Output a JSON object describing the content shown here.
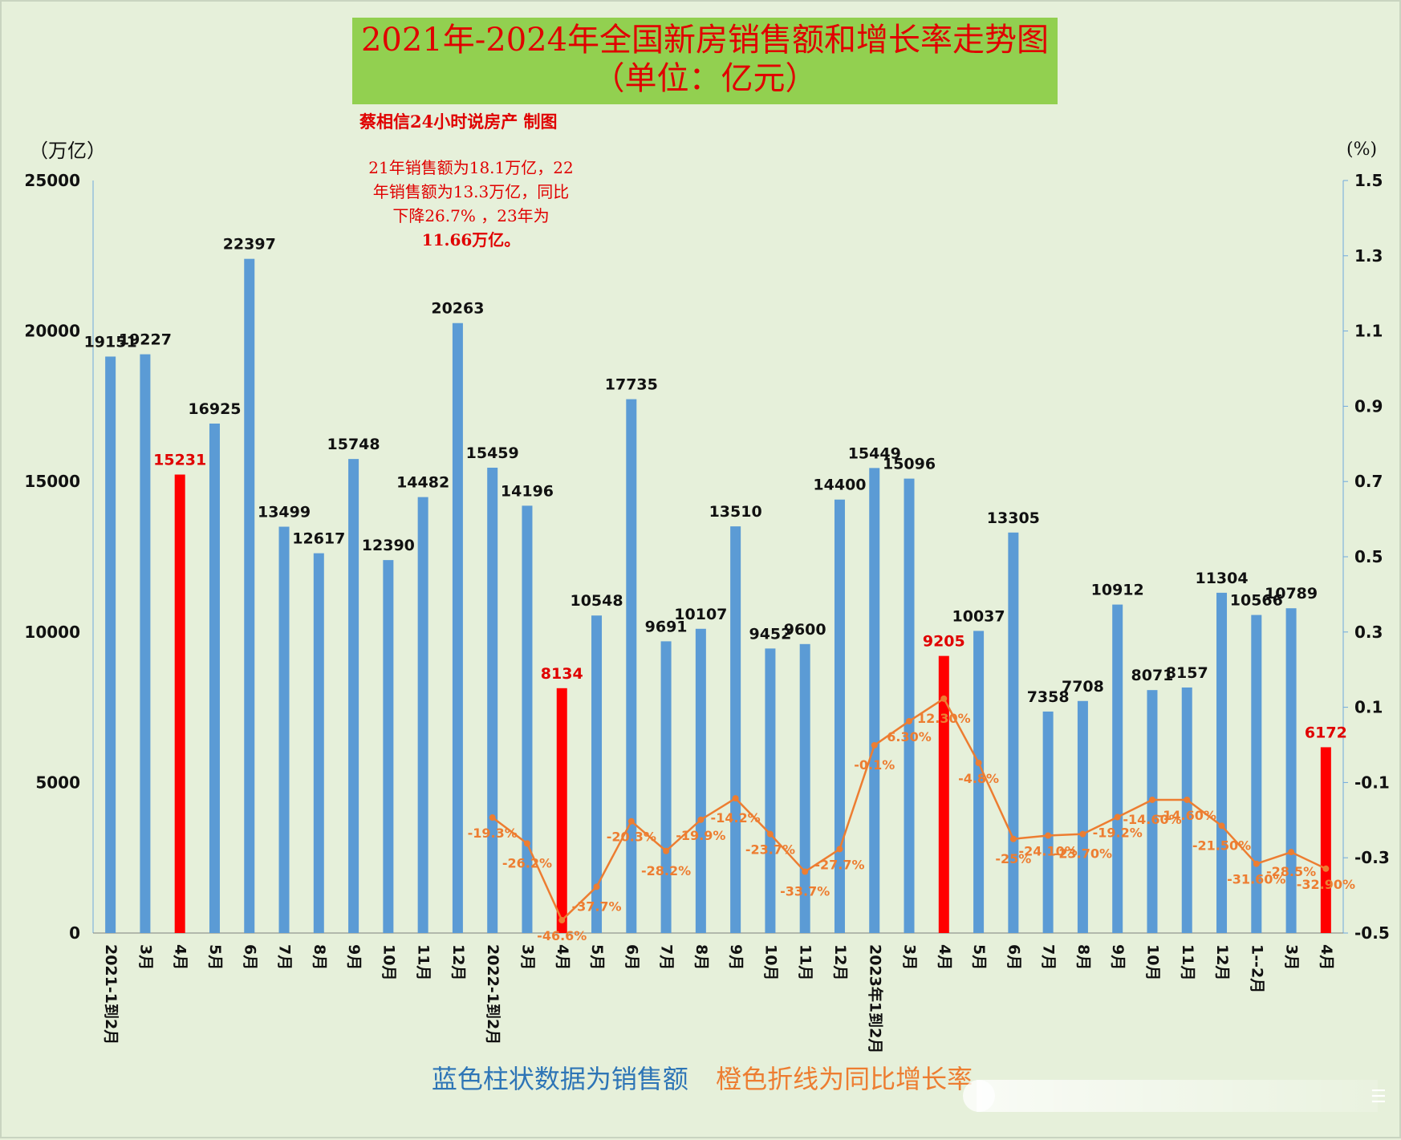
{
  "title_line1": "2021年-2024年全国新房销售额和增长率走势图",
  "title_line2": "（单位：亿元）",
  "credit": "蔡相信24小时说房产  制图",
  "note_lines": [
    "21年销售额为18.1万亿，22",
    "年销售额为13.3万亿，同比",
    "下降26.7% ，23年为",
    "11.66万亿。"
  ],
  "legend_bars": "蓝色柱状数据为销售额",
  "legend_line": "橙色折线为同比增长率",
  "colors": {
    "bar": "#5b9bd5",
    "highlight": "#ff0000",
    "line": "#ed7d31",
    "title_bg": "#92d050",
    "background": "#e6f0da"
  },
  "chart_data": {
    "type": "bar",
    "title": "2021年-2024年全国新房销售额和增长率走势图",
    "subtitle": "（单位：亿元）",
    "y_left_label": "（万亿）",
    "y_right_label": "(%)",
    "y_left_lim": [
      0,
      25000
    ],
    "y_left_ticks": [
      0,
      5000,
      10000,
      15000,
      20000,
      25000
    ],
    "y_right_lim": [
      -0.5,
      1.5
    ],
    "y_right_ticks": [
      "1.5",
      "1.3",
      "1.1",
      "0.9",
      "0.7",
      "0.5",
      "0.3",
      "0.1",
      "-0.1",
      "-0.3",
      "-0.5"
    ],
    "categories": [
      "2021-1到2月",
      "3月",
      "4月",
      "5月",
      "6月",
      "7月",
      "8月",
      "9月",
      "10月",
      "11月",
      "12月",
      "2022-1到2月",
      "3月",
      "4月",
      "5月",
      "6月",
      "7月",
      "8月",
      "9月",
      "10月",
      "11月",
      "12月",
      "2023年1到2月",
      "3月",
      "4月",
      "5月",
      "6月",
      "7月",
      "8月",
      "9月",
      "10月",
      "11月",
      "12月",
      "1--2月",
      "3月",
      "4月"
    ],
    "series": [
      {
        "name": "销售额",
        "values": [
          19151,
          19227,
          15231,
          16925,
          22397,
          13499,
          12617,
          15748,
          12390,
          14482,
          20263,
          15459,
          14196,
          8134,
          10548,
          17735,
          9691,
          10107,
          13510,
          9452,
          9600,
          14400,
          15449,
          15096,
          9205,
          10037,
          13305,
          7358,
          7708,
          10912,
          8071,
          8157,
          11304,
          10566,
          10789,
          6172
        ],
        "highlighted_indices": [
          2,
          13,
          24,
          35
        ]
      },
      {
        "name": "同比增长率",
        "axis": "right",
        "values": [
          null,
          null,
          null,
          null,
          null,
          null,
          null,
          null,
          null,
          null,
          null,
          -0.193,
          -0.262,
          -0.466,
          -0.377,
          -0.203,
          -0.282,
          -0.199,
          -0.142,
          -0.237,
          -0.337,
          -0.277,
          -0.001,
          0.063,
          0.123,
          -0.048,
          -0.25,
          -0.241,
          -0.237,
          -0.192,
          -0.146,
          -0.146,
          -0.215,
          -0.316,
          -0.285,
          -0.329
        ],
        "labels": [
          null,
          null,
          null,
          null,
          null,
          null,
          null,
          null,
          null,
          null,
          null,
          "-19.3%",
          "-26.2%",
          "-46.6%",
          "-37.7%",
          "-20.3%",
          "-28.2%",
          "-19.9%",
          "-14.2%",
          "-23.7%",
          "-33.7%",
          "-27.7%",
          "-0.1%",
          "6.30%",
          "12.30%",
          "-4.8%",
          "-25%",
          "-24.10%",
          "-23.70%",
          "-19.2%",
          "-14.60%",
          "-14.60%",
          "-21.50%",
          "-31.60%",
          "-28.5%",
          "-32.90%"
        ]
      }
    ]
  }
}
